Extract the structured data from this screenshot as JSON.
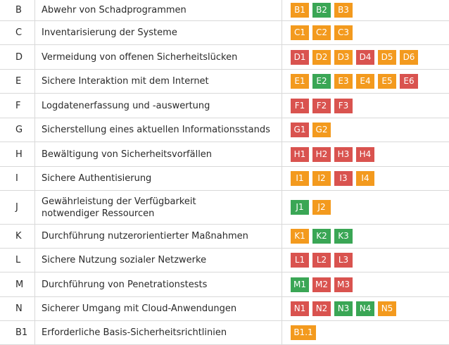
{
  "colors": {
    "orange": "#f39a1e",
    "green": "#3aa655",
    "red": "#d9534f"
  },
  "rows": [
    {
      "code": "B",
      "label": "Abwehr von Schadprogrammen",
      "badges": [
        {
          "text": "B1",
          "color": "orange"
        },
        {
          "text": "B2",
          "color": "green"
        },
        {
          "text": "B3",
          "color": "orange"
        }
      ]
    },
    {
      "code": "C",
      "label": "Inventarisierung der Systeme",
      "badges": [
        {
          "text": "C1",
          "color": "orange"
        },
        {
          "text": "C2",
          "color": "orange"
        },
        {
          "text": "C3",
          "color": "orange"
        }
      ]
    },
    {
      "code": "D",
      "label": "Vermeidung von offenen Sicherheitslücken",
      "badges": [
        {
          "text": "D1",
          "color": "red"
        },
        {
          "text": "D2",
          "color": "orange"
        },
        {
          "text": "D3",
          "color": "orange"
        },
        {
          "text": "D4",
          "color": "red"
        },
        {
          "text": "D5",
          "color": "orange"
        },
        {
          "text": "D6",
          "color": "orange"
        }
      ]
    },
    {
      "code": "E",
      "label": "Sichere Interaktion mit dem Internet",
      "badges": [
        {
          "text": "E1",
          "color": "orange"
        },
        {
          "text": "E2",
          "color": "green"
        },
        {
          "text": "E3",
          "color": "orange"
        },
        {
          "text": "E4",
          "color": "orange"
        },
        {
          "text": "E5",
          "color": "orange"
        },
        {
          "text": "E6",
          "color": "red"
        }
      ]
    },
    {
      "code": "F",
      "label": "Logdatenerfassung und -auswertung",
      "badges": [
        {
          "text": "F1",
          "color": "red"
        },
        {
          "text": "F2",
          "color": "red"
        },
        {
          "text": "F3",
          "color": "red"
        }
      ]
    },
    {
      "code": "G",
      "label": "Sicherstellung eines aktuellen Informationsstands",
      "badges": [
        {
          "text": "G1",
          "color": "red"
        },
        {
          "text": "G2",
          "color": "orange"
        }
      ]
    },
    {
      "code": "H",
      "label": "Bewältigung von Sicherheitsvorfällen",
      "badges": [
        {
          "text": "H1",
          "color": "red"
        },
        {
          "text": "H2",
          "color": "red"
        },
        {
          "text": "H3",
          "color": "red"
        },
        {
          "text": "H4",
          "color": "red"
        }
      ]
    },
    {
      "code": "I",
      "label": "Sichere Authentisierung",
      "badges": [
        {
          "text": "I1",
          "color": "orange"
        },
        {
          "text": "I2",
          "color": "orange"
        },
        {
          "text": "I3",
          "color": "red"
        },
        {
          "text": "I4",
          "color": "orange"
        }
      ]
    },
    {
      "code": "J",
      "label": "Gewährleistung der Verfügbarkeit\nnotwendiger Ressourcen",
      "badges": [
        {
          "text": "J1",
          "color": "green"
        },
        {
          "text": "J2",
          "color": "orange"
        }
      ]
    },
    {
      "code": "K",
      "label": "Durchführung nutzerorientierter Maßnahmen",
      "badges": [
        {
          "text": "K1",
          "color": "orange"
        },
        {
          "text": "K2",
          "color": "green"
        },
        {
          "text": "K3",
          "color": "green"
        }
      ]
    },
    {
      "code": "L",
      "label": "Sichere Nutzung sozialer Netzwerke",
      "badges": [
        {
          "text": "L1",
          "color": "red"
        },
        {
          "text": "L2",
          "color": "red"
        },
        {
          "text": "L3",
          "color": "red"
        }
      ]
    },
    {
      "code": "M",
      "label": "Durchführung von Penetrationstests",
      "badges": [
        {
          "text": "M1",
          "color": "green"
        },
        {
          "text": "M2",
          "color": "red"
        },
        {
          "text": "M3",
          "color": "red"
        }
      ]
    },
    {
      "code": "N",
      "label": "Sicherer Umgang mit Cloud-Anwendungen",
      "badges": [
        {
          "text": "N1",
          "color": "red"
        },
        {
          "text": "N2",
          "color": "red"
        },
        {
          "text": "N3",
          "color": "green"
        },
        {
          "text": "N4",
          "color": "green"
        },
        {
          "text": "N5",
          "color": "orange"
        }
      ]
    },
    {
      "code": "B1",
      "label": "Erforderliche Basis-Sicherheitsrichtlinien",
      "badges": [
        {
          "text": "B1.1",
          "color": "orange"
        }
      ]
    }
  ]
}
